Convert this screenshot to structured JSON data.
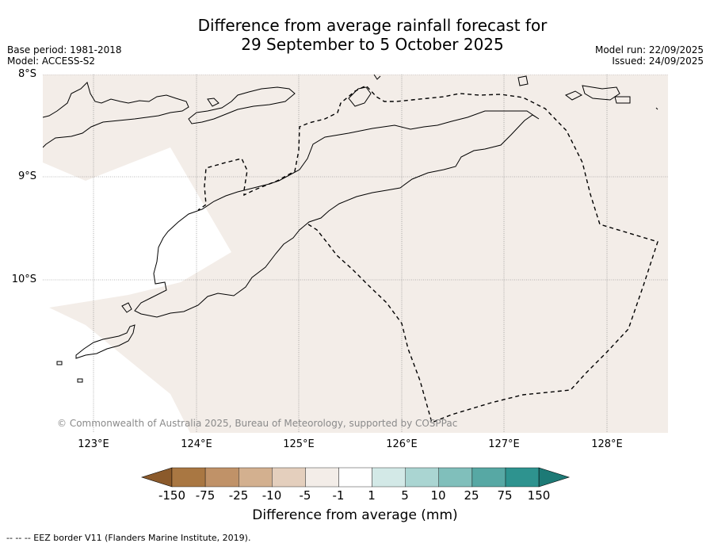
{
  "header": {
    "title_line1": "Difference from average rainfall forecast for",
    "title_line2": "29 September to 5 October 2025",
    "base_period": "Base period: 1981-2018",
    "model": "Model: ACCESS-S2",
    "model_run": "Model run: 22/09/2025",
    "issued": "Issued: 24/09/2025"
  },
  "map": {
    "lat_labels": [
      "8°S",
      "9°S",
      "10°S"
    ],
    "lon_labels": [
      "123°E",
      "124°E",
      "125°E",
      "126°E",
      "127°E",
      "128°E"
    ],
    "copyright": "© Commonwealth of Australia 2025, Bureau of Meteorology, supported by COSPPac",
    "field_color": "#f3ede8",
    "missing_color": "#ffffff",
    "category_shown": "-5 to -1"
  },
  "colorbar": {
    "labels": [
      "-150",
      "-75",
      "-25",
      "-10",
      "-5",
      "-1",
      "1",
      "5",
      "10",
      "25",
      "75",
      "150"
    ],
    "colors": [
      "#8b5a2b",
      "#a97742",
      "#c09268",
      "#d3b08f",
      "#e4cfbd",
      "#f3ede8",
      "#ffffff",
      "#d3e9e7",
      "#aad5d2",
      "#80bfbb",
      "#57a8a4",
      "#2e938f",
      "#1d7a76"
    ],
    "title": "Difference from average (mm)"
  },
  "footer": {
    "legend": "--  --  -- EEZ border V11 (Flanders Marine Institute, 2019)."
  }
}
